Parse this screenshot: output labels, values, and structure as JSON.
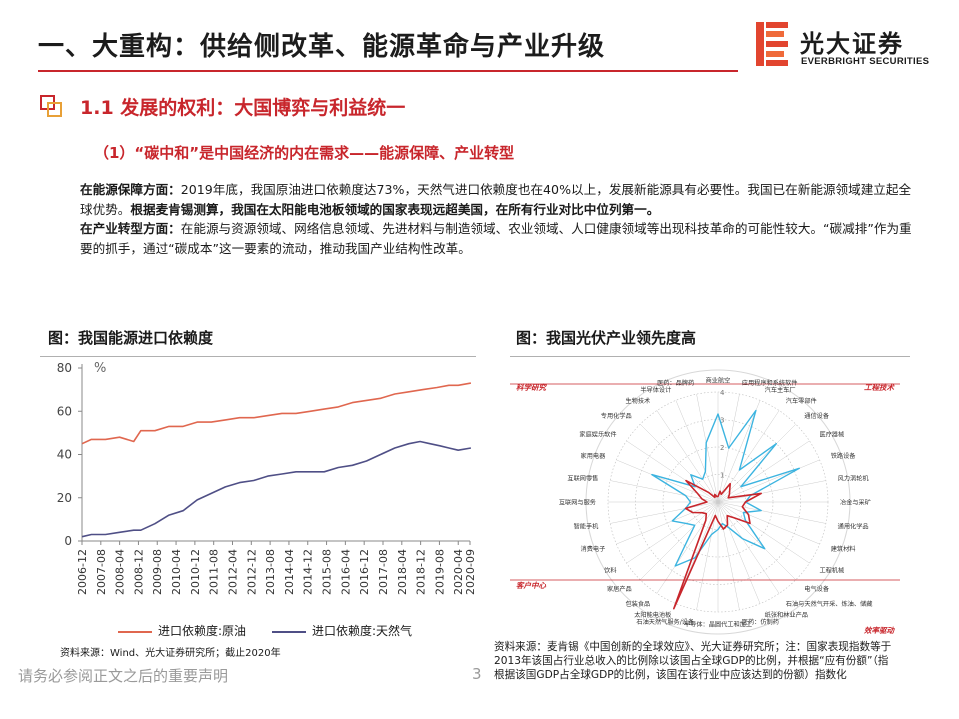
{
  "header": {
    "title": "一、大重构：供给侧改革、能源革命与产业升级",
    "logo_cn": "光大证券",
    "logo_en": "EVERBRIGHT SECURITIES"
  },
  "section": {
    "heading": "1.1 发展的权利：大国博弈与利益统一",
    "subheading": "（1）“碳中和”是中国经济的内在需求——能源保障、产业转型"
  },
  "body": {
    "p1_label": "在能源保障方面：",
    "p1_text": "2019年底，我国原油进口依赖度达73%，天然气进口依赖度也在40%以上，发展新能源具有必要性。我国已在新能源领域建立起全球优势。",
    "p1_bold": "根据麦肯锡测算，我国在太阳能电池板领域的国家表现远超美国，在所有行业对比中位列第一。",
    "p2_label": "在产业转型方面：",
    "p2_text": "在能源与资源领域、网络信息领域、先进材料与制造领域、农业领域、人口健康领域等出现科技革命的可能性较大。“碳减排”作为重要的抓手，通过“碳成本”这一要素的流动，推动我国产业结构性改革。"
  },
  "left_chart": {
    "title": "图：我国能源进口依赖度",
    "unit": "%",
    "legend_crude": "进口依赖度:原油",
    "legend_gas": "进口依赖度:天然气",
    "source": "资料来源：Wind、光大证券研究所；截止2020年"
  },
  "right_chart": {
    "title": "图：我国光伏产业领先度高",
    "source": "资料来源：麦肯锡《中国创新的全球效应》、光大证券研究所；注：国家表现指数等于2013年该国占行业总收入的比例除以该国占全球GDP的比例，并根据“应有份额”（指根据该国GDP占全球GDP的比例，该国在该行业中应该达到的份额）指数化"
  },
  "footer": {
    "disclaimer": "请务必参阅正文之后的重要声明",
    "page": "3"
  },
  "colors": {
    "accent": "#c8262c",
    "crude": "#e0674f",
    "gas": "#4f4f86",
    "radar_cyan": "#3cb4e0"
  },
  "chart_data": [
    {
      "type": "line",
      "title": "",
      "ylabel": "%",
      "ylim": [
        0,
        80
      ],
      "yticks": [
        0,
        20,
        40,
        60,
        80
      ],
      "x_tick_labels": [
        "2006-12",
        "2007-08",
        "2008-04",
        "2008-12",
        "2009-08",
        "2010-04",
        "2010-12",
        "2011-08",
        "2012-04",
        "2012-12",
        "2013-08",
        "2014-04",
        "2014-12",
        "2015-08",
        "2016-04",
        "2016-12",
        "2017-08",
        "2018-04",
        "2018-12",
        "2019-08",
        "2020-04",
        "2020-09"
      ],
      "x_start": "2006-12",
      "x_end": "2020-09",
      "grid": false,
      "legend_position": "bottom",
      "series": [
        {
          "name": "进口依赖度:原油",
          "x": [
            2006.92,
            2007.25,
            2007.75,
            2008.25,
            2008.75,
            2009.0,
            2009.5,
            2010.0,
            2010.5,
            2011.0,
            2011.5,
            2012.0,
            2012.5,
            2013.0,
            2013.5,
            2014.0,
            2014.5,
            2015.0,
            2015.5,
            2016.0,
            2016.5,
            2017.0,
            2017.5,
            2018.0,
            2018.5,
            2019.0,
            2019.5,
            2019.92,
            2020.25,
            2020.7
          ],
          "y": [
            45,
            47,
            47,
            48,
            46,
            51,
            51,
            53,
            53,
            55,
            55,
            56,
            57,
            57,
            58,
            59,
            59,
            60,
            61,
            62,
            64,
            65,
            66,
            68,
            69,
            70,
            71,
            72,
            72,
            73
          ]
        },
        {
          "name": "进口依赖度:天然气",
          "x": [
            2006.92,
            2007.25,
            2007.75,
            2008.25,
            2008.75,
            2009.0,
            2009.5,
            2010.0,
            2010.5,
            2011.0,
            2011.5,
            2012.0,
            2012.5,
            2013.0,
            2013.5,
            2014.0,
            2014.5,
            2015.0,
            2015.5,
            2016.0,
            2016.5,
            2017.0,
            2017.5,
            2018.0,
            2018.5,
            2018.9,
            2019.25,
            2019.6,
            2019.92,
            2020.25,
            2020.7
          ],
          "y": [
            2,
            3,
            3,
            4,
            5,
            5,
            8,
            12,
            14,
            19,
            22,
            25,
            27,
            28,
            30,
            31,
            32,
            32,
            32,
            34,
            35,
            37,
            40,
            43,
            45,
            46,
            45,
            44,
            43,
            42,
            43
          ]
        }
      ]
    },
    {
      "type": "radar",
      "title": "",
      "rlim": [
        0,
        4
      ],
      "rticks": [
        1,
        2,
        3,
        4
      ],
      "quadrant_labels": [
        "科学研究",
        "工程技术",
        "客户中心",
        "效率驱动"
      ],
      "category_labels": [
        "商业航空",
        "应用程序和系统软件",
        "汽车主车厂",
        "汽车零部件",
        "通信设备",
        "医疗器械",
        "铁路设备",
        "风力涡轮机",
        "冶金与采矿",
        "通用化学品",
        "建筑材料",
        "工程机械",
        "电气设备",
        "石油与天然气开采、炼油、储藏",
        "纸张和林业产品",
        "医药：仿制药",
        "半导体：晶圆代工和加工",
        "石油天然气服务/设备",
        "太阳能电池板",
        "包装食品",
        "家居产品",
        "饮料",
        "消费电子",
        "智能手机",
        "互联网与服务",
        "互联网零售",
        "家用电器",
        "家庭娱乐软件",
        "专用化学品",
        "生物技术",
        "半导体设计",
        "医药：品牌药"
      ],
      "series": [
        {
          "name": "",
          "color": "#3cb4e0",
          "values": [
            3.2,
            2.0,
            3.6,
            1.4,
            3.0,
            1.0,
            3.2,
            1.2,
            1.0,
            1.6,
            1.0,
            1.2,
            2.4,
            1.6,
            1.0,
            0.8,
            1.0,
            1.2,
            2.2,
            2.8,
            1.2,
            1.4,
            1.8,
            1.2,
            1.0,
            1.2,
            2.6,
            1.0,
            1.4,
            1.0,
            1.2,
            2.2
          ]
        },
        {
          "name": "",
          "color": "#c8262c",
          "values": [
            0.2,
            0.4,
            0.3,
            0.8,
            0.6,
            0.5,
            0.4,
            1.6,
            1.0,
            0.9,
            1.2,
            1.4,
            0.8,
            0.6,
            0.9,
            1.0,
            0.7,
            0.5,
            4.2,
            0.8,
            0.6,
            0.7,
            1.0,
            1.2,
            0.4,
            0.6,
            0.8,
            1.4,
            0.5,
            0.2,
            0.3,
            0.2
          ]
        }
      ]
    }
  ]
}
